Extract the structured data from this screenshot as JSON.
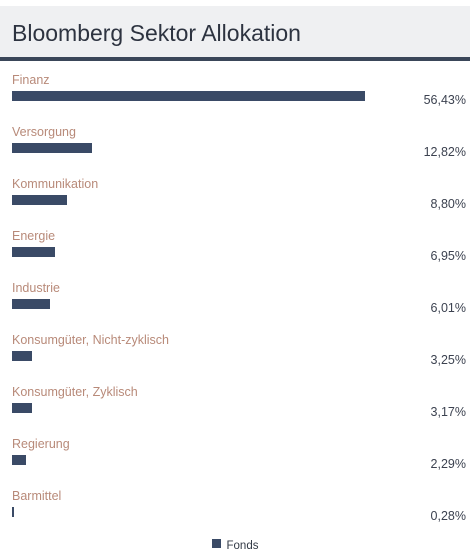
{
  "header": {
    "title": "Bloomberg Sektor Allokation"
  },
  "colors": {
    "bar": "#3a4a66",
    "label": "#b88a79",
    "header_bg": "#eff0f2",
    "header_border": "#3a4659"
  },
  "chart_data": {
    "type": "bar",
    "orientation": "horizontal",
    "title": "Bloomberg Sektor Allokation",
    "categories": [
      "Finanz",
      "Versorgung",
      "Kommunikation",
      "Energie",
      "Industrie",
      "Konsumgüter, Nicht-zyklisch",
      "Konsumgüter, Zyklisch",
      "Regierung",
      "Barmittel"
    ],
    "series": [
      {
        "name": "Fonds",
        "values": [
          56.43,
          12.82,
          8.8,
          6.95,
          6.01,
          3.25,
          3.17,
          2.29,
          0.28
        ],
        "labels": [
          "56,43%",
          "12,82%",
          "8,80%",
          "6,95%",
          "6,01%",
          "3,25%",
          "3,17%",
          "2,29%",
          "0,28%"
        ]
      }
    ],
    "unit": "%",
    "legend": {
      "position": "bottom-center",
      "label": "Fonds"
    }
  }
}
